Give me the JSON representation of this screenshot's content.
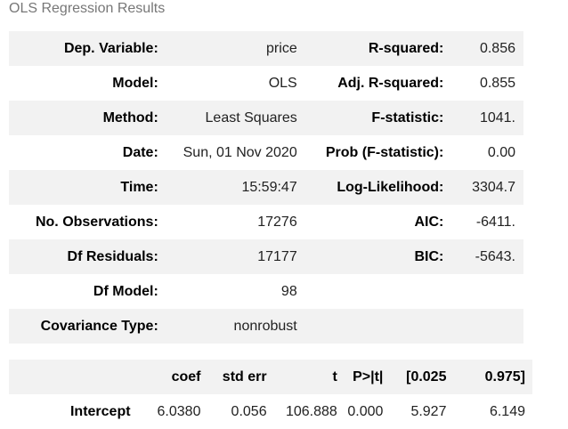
{
  "caption": "OLS Regression Results",
  "summary": {
    "rows": [
      {
        "k1": "Dep. Variable:",
        "v1": "price",
        "k2": "R-squared:",
        "v2": "0.856"
      },
      {
        "k1": "Model:",
        "v1": "OLS",
        "k2": "Adj. R-squared:",
        "v2": "0.855"
      },
      {
        "k1": "Method:",
        "v1": "Least Squares",
        "k2": "F-statistic:",
        "v2": "1041."
      },
      {
        "k1": "Date:",
        "v1": "Sun, 01 Nov 2020",
        "k2": "Prob (F-statistic):",
        "v2": "0.00"
      },
      {
        "k1": "Time:",
        "v1": "15:59:47",
        "k2": "Log-Likelihood:",
        "v2": "3304.7"
      },
      {
        "k1": "No. Observations:",
        "v1": "17276",
        "k2": "AIC:",
        "v2": "-6411."
      },
      {
        "k1": "Df Residuals:",
        "v1": "17177",
        "k2": "BIC:",
        "v2": "-5643."
      },
      {
        "k1": "Df Model:",
        "v1": "98",
        "k2": "",
        "v2": ""
      },
      {
        "k1": "Covariance Type:",
        "v1": "nonrobust",
        "k2": "",
        "v2": ""
      }
    ]
  },
  "coefficients": {
    "headers": [
      "",
      "coef",
      "std err",
      "t",
      "P>|t|",
      "[0.025",
      "0.975]"
    ],
    "rows": [
      {
        "name": "Intercept",
        "coef": "6.0380",
        "std_err": "0.056",
        "t": "106.888",
        "p": "0.000",
        "lo": "5.927",
        "hi": "6.149"
      }
    ]
  }
}
